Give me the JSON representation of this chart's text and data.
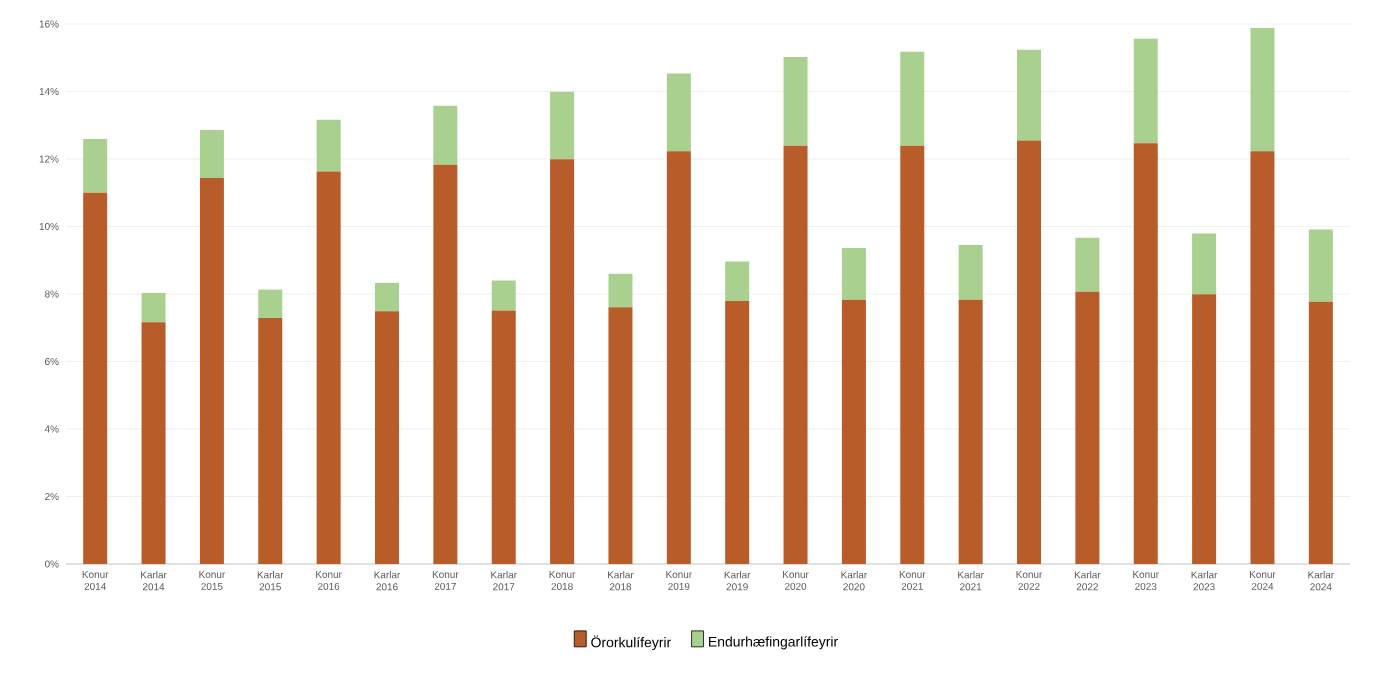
{
  "chart_data": {
    "type": "bar",
    "stacked": true,
    "categories": [
      "Konur 2014",
      "Karlar 2014",
      "Konur 2015",
      "Karlar 2015",
      "Konur 2016",
      "Karlar 2016",
      "Konur 2017",
      "Karlar 2017",
      "Konur 2018",
      "Karlar 2018",
      "Konur 2019",
      "Karlar 2019",
      "Konur 2020",
      "Karlar 2020",
      "Konur 2021",
      "Karlar 2021",
      "Konur 2022",
      "Karlar 2022",
      "Konur 2023",
      "Karlar 2023",
      "Konur 2024",
      "Karlar 2024"
    ],
    "series": [
      {
        "name": "Örorkulífeyrir",
        "color": "#b85c2a",
        "values": [
          11.0,
          7.16,
          11.44,
          7.29,
          11.63,
          7.49,
          11.83,
          7.51,
          11.99,
          7.61,
          12.23,
          7.79,
          12.39,
          7.83,
          12.39,
          7.83,
          12.55,
          8.07,
          12.47,
          7.99,
          12.23,
          7.77
        ]
      },
      {
        "name": "Endurhæfingarlífeyrir",
        "color": "#a9d08e",
        "values": [
          1.59,
          0.87,
          1.42,
          0.84,
          1.53,
          0.84,
          1.75,
          0.89,
          2.0,
          0.99,
          2.3,
          1.17,
          2.63,
          1.53,
          2.79,
          1.62,
          2.69,
          1.6,
          3.09,
          1.8,
          3.65,
          2.14
        ]
      }
    ],
    "ylim": [
      0,
      16
    ],
    "yticks": [
      {
        "value": 0,
        "label": "0%"
      },
      {
        "value": 2,
        "label": "2%"
      },
      {
        "value": 4,
        "label": "4%"
      },
      {
        "value": 6,
        "label": "6%"
      },
      {
        "value": 8,
        "label": "8%"
      },
      {
        "value": 10,
        "label": "10%"
      },
      {
        "value": 12,
        "label": "12%"
      },
      {
        "value": 14,
        "label": "14%"
      },
      {
        "value": 16,
        "label": "16%"
      }
    ],
    "grid": "y",
    "legend": "bottom"
  }
}
